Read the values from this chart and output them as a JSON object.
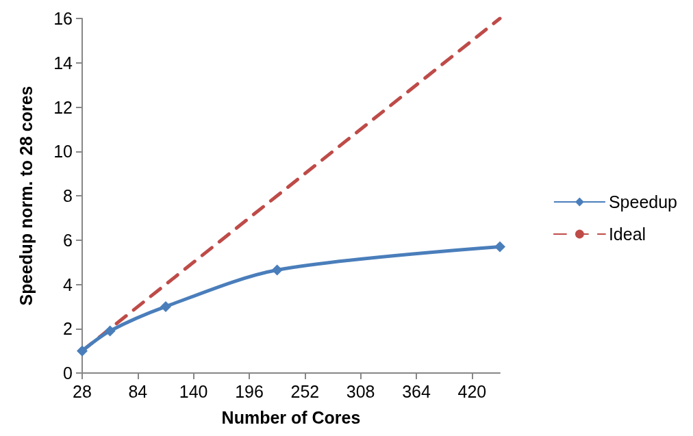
{
  "chart_data": {
    "type": "line",
    "xlabel": "Number of Cores",
    "ylabel": "Speedup norm. to 28 cores",
    "x": [
      28,
      56,
      112,
      224,
      448
    ],
    "xlim": [
      28,
      448
    ],
    "xticks": [
      28,
      84,
      140,
      196,
      252,
      308,
      364,
      420
    ],
    "ylim": [
      0,
      16
    ],
    "yticks": [
      0,
      2,
      4,
      6,
      8,
      10,
      12,
      14,
      16
    ],
    "grid": false,
    "legend": "right",
    "series": [
      {
        "name": "Speedup",
        "color": "#4a7ebb",
        "values": [
          1.0,
          1.9,
          3.0,
          4.65,
          5.7
        ],
        "marker": "diamond",
        "line_style": "solid"
      },
      {
        "name": "Ideal",
        "color": "#be4b48",
        "values": [
          1,
          2,
          4,
          8,
          16
        ],
        "marker": "none",
        "line_style": "dashed"
      }
    ]
  }
}
